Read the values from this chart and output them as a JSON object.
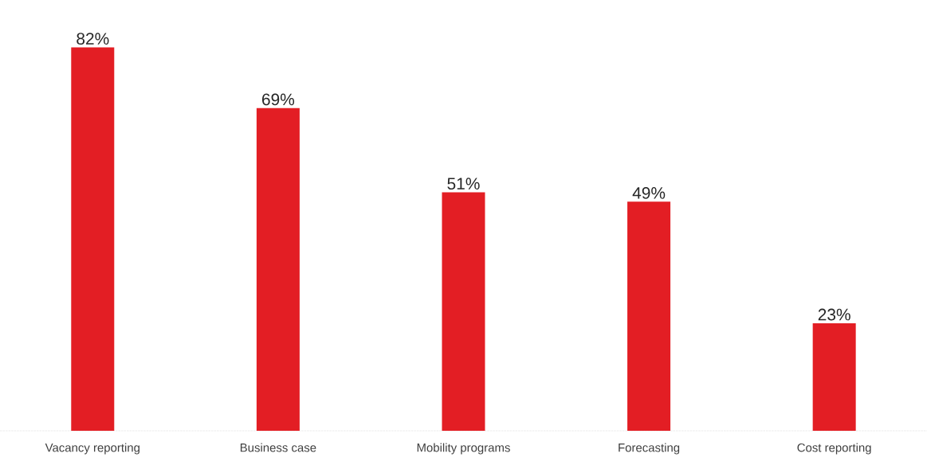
{
  "chart_data": {
    "type": "bar",
    "categories": [
      "Vacancy reporting",
      "Business case",
      "Mobility programs",
      "Forecasting",
      "Cost reporting"
    ],
    "values": [
      82,
      69,
      51,
      49,
      23
    ],
    "color": "#e31e24",
    "value_labels": [
      "82%",
      "69%",
      "51%",
      "49%",
      "23%"
    ]
  }
}
